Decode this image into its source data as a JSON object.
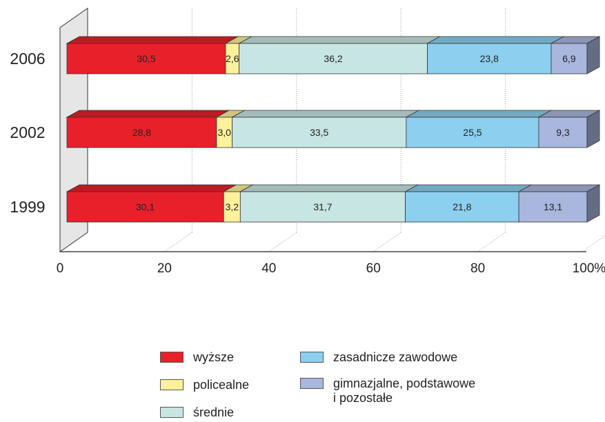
{
  "chart_data": {
    "type": "bar",
    "orientation": "horizontal",
    "stacked": true,
    "three_d": true,
    "categories": [
      "2006",
      "2002",
      "1999"
    ],
    "series": [
      {
        "name": "wyższe",
        "values": [
          30.5,
          28.8,
          30.1
        ],
        "labels": [
          "30,5",
          "28,8",
          "30,1"
        ],
        "color": "#e8202a"
      },
      {
        "name": "policealne",
        "values": [
          2.6,
          3.0,
          3.2
        ],
        "labels": [
          "2,6",
          "3,0",
          "3,2"
        ],
        "color": "#fdf29b"
      },
      {
        "name": "średnie",
        "values": [
          36.2,
          33.5,
          31.7
        ],
        "labels": [
          "36,2",
          "33,5",
          "31,7"
        ],
        "color": "#c7e5e3"
      },
      {
        "name": "zasadnicze zawodowe",
        "values": [
          23.8,
          25.5,
          21.8
        ],
        "labels": [
          "23,8",
          "25,5",
          "21,8"
        ],
        "color": "#8ccfee"
      },
      {
        "name": "gimnazjalne, podstawowe i pozostałe",
        "values": [
          6.9,
          9.3,
          13.1
        ],
        "labels": [
          "6,9",
          "9,3",
          "13,1"
        ],
        "color": "#a9b6dd"
      }
    ],
    "xlim": [
      0,
      100
    ],
    "ticks": [
      "0",
      "20",
      "40",
      "60",
      "80",
      "100%"
    ],
    "tick_values": [
      0,
      20,
      40,
      60,
      80,
      100
    ],
    "xlabel": "",
    "ylabel": "",
    "title": "",
    "grid": "dotted vertical",
    "legend_position": "bottom"
  },
  "legend": {
    "items": [
      {
        "label_lines": [
          "wyższe"
        ],
        "color": "#e8202a"
      },
      {
        "label_lines": [
          "policealne"
        ],
        "color": "#fdf29b"
      },
      {
        "label_lines": [
          "średnie"
        ],
        "color": "#c7e5e3"
      },
      {
        "label_lines": [
          "zasadnicze zawodowe"
        ],
        "color": "#8ccfee"
      },
      {
        "label_lines": [
          "gimnazjalne, podstawowe",
          "i pozostałe"
        ],
        "color": "#a9b6dd"
      }
    ]
  }
}
